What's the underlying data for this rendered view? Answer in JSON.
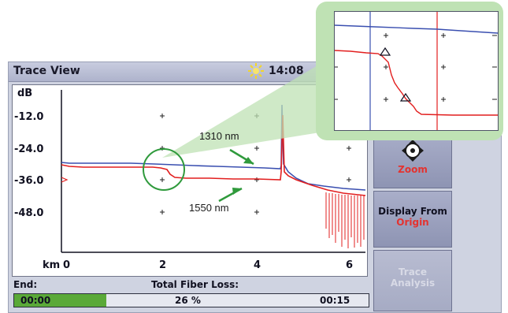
{
  "window": {
    "title": "Trace View",
    "clock": "14:08"
  },
  "plot": {
    "y_unit": "dB",
    "x_unit": "km",
    "y_ticks": [
      "-12.0",
      "-24.0",
      "-36.0",
      "-48.0"
    ],
    "x_ticks": [
      "0",
      "2",
      "4",
      "6"
    ],
    "trace_colors": {
      "1310 nm": "#3a4fb0",
      "1550 nm": "#e21f1f"
    }
  },
  "annotations": {
    "trace_1310": "1310 nm",
    "trace_1550": "1550 nm"
  },
  "side_buttons": [
    {
      "id": "zoom",
      "line1": "",
      "line2": "Zoom"
    },
    {
      "id": "display",
      "line1": "Display From",
      "line2": "Origin"
    },
    {
      "id": "analysis",
      "line1": "Trace",
      "line2": "Analysis"
    }
  ],
  "status": {
    "end_label": "End:",
    "loss_label": "Total Fiber Loss:",
    "elapsed": "00:00",
    "progress_text": "26 %",
    "total": "00:15",
    "progress_fraction": 0.26
  },
  "colors": {
    "accent_green": "#5aa938",
    "callout_green": "#bfe2b4",
    "trace_blue": "#3a4fb0",
    "trace_red": "#e21f1f",
    "highlight_red": "#e4322f"
  }
}
